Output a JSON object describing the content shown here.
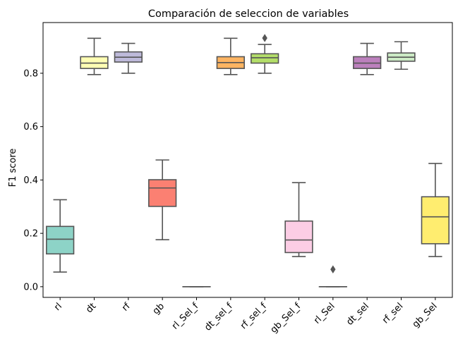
{
  "chart_data": {
    "type": "box",
    "title": "Comparación de seleccion de variables",
    "xlabel": "",
    "ylabel": "F1 score",
    "ylim": [
      -0.04,
      0.99
    ],
    "yticks": [
      "0.0",
      "0.2",
      "0.4",
      "0.6",
      "0.8"
    ],
    "ytick_values": [
      0.0,
      0.2,
      0.4,
      0.6,
      0.8
    ],
    "grid": false,
    "categories": [
      "rl",
      "dt",
      "rf",
      "gb",
      "rl_Sel_f",
      "dt_sel_f",
      "rf_sel_f",
      "gb_Sel_f",
      "rl_Sel",
      "dt_sel",
      "rf_sel",
      "gb_Sel"
    ],
    "boxes": [
      {
        "name": "rl",
        "min": 0.055,
        "q1": 0.123,
        "median": 0.178,
        "q3": 0.226,
        "max": 0.326,
        "outliers": [],
        "color": "#8dd3c7"
      },
      {
        "name": "dt",
        "min": 0.795,
        "q1": 0.818,
        "median": 0.838,
        "q3": 0.862,
        "max": 0.931,
        "outliers": [],
        "color": "#ffffb3"
      },
      {
        "name": "rf",
        "min": 0.8,
        "q1": 0.842,
        "median": 0.86,
        "q3": 0.88,
        "max": 0.912,
        "outliers": [],
        "color": "#bebada"
      },
      {
        "name": "gb",
        "min": 0.176,
        "q1": 0.301,
        "median": 0.37,
        "q3": 0.401,
        "max": 0.475,
        "outliers": [],
        "color": "#fb8072"
      },
      {
        "name": "rl_Sel_f",
        "min": 0.0,
        "q1": 0.0,
        "median": 0.0,
        "q3": 0.0,
        "max": 0.0,
        "outliers": [],
        "color": "#80b1d3"
      },
      {
        "name": "dt_sel_f",
        "min": 0.795,
        "q1": 0.818,
        "median": 0.84,
        "q3": 0.862,
        "max": 0.931,
        "outliers": [],
        "color": "#fdb462"
      },
      {
        "name": "rf_sel_f",
        "min": 0.8,
        "q1": 0.838,
        "median": 0.858,
        "q3": 0.873,
        "max": 0.908,
        "outliers": [
          0.932
        ],
        "color": "#b3de69"
      },
      {
        "name": "gb_Sel_f",
        "min": 0.113,
        "q1": 0.128,
        "median": 0.175,
        "q3": 0.246,
        "max": 0.39,
        "outliers": [],
        "color": "#fccde5"
      },
      {
        "name": "rl_Sel",
        "min": 0.0,
        "q1": 0.0,
        "median": 0.0,
        "q3": 0.0,
        "max": 0.0,
        "outliers": [
          0.065
        ],
        "color": "#d9d9d9"
      },
      {
        "name": "dt_sel",
        "min": 0.795,
        "q1": 0.818,
        "median": 0.838,
        "q3": 0.862,
        "max": 0.912,
        "outliers": [],
        "color": "#bc80bd"
      },
      {
        "name": "rf_sel",
        "min": 0.815,
        "q1": 0.845,
        "median": 0.86,
        "q3": 0.876,
        "max": 0.918,
        "outliers": [],
        "color": "#ccebc5"
      },
      {
        "name": "gb_Sel",
        "min": 0.113,
        "q1": 0.161,
        "median": 0.262,
        "q3": 0.337,
        "max": 0.462,
        "outliers": [],
        "color": "#ffed6f"
      }
    ]
  }
}
